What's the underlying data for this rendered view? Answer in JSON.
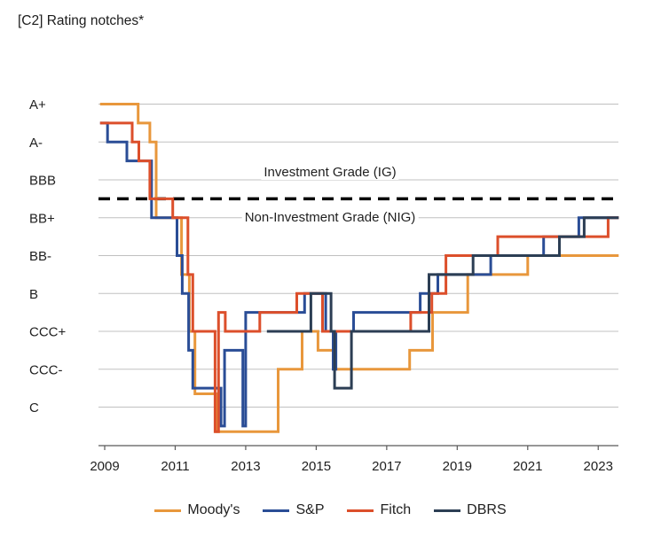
{
  "title": "[C2] Rating notches*",
  "annotations": {
    "ig": "Investment Grade (IG)",
    "nig": "Non-Investment Grade (NIG)"
  },
  "legend": [
    {
      "label": "Moody's",
      "color": "#E8973C"
    },
    {
      "label": "S&P",
      "color": "#2A4D96"
    },
    {
      "label": "Fitch",
      "color": "#DC4F2B"
    },
    {
      "label": "DBRS",
      "color": "#2C3E54"
    }
  ],
  "colors": {
    "grid": "#C0C0C0",
    "axis": "#595959",
    "ig_line": "#000000",
    "text": "#1F1F1F"
  },
  "chart_data": {
    "type": "line",
    "subtype": "step",
    "title": "[C2] Rating notches*",
    "x_axis": {
      "tick_labels": [
        "2009",
        "2011",
        "2013",
        "2015",
        "2017",
        "2019",
        "2021",
        "2023"
      ],
      "tick_values": [
        2009,
        2011,
        2013,
        2015,
        2017,
        2019,
        2021,
        2023
      ],
      "range": [
        2008.87,
        2023.58
      ]
    },
    "y_axis": {
      "tick_labels": [
        "A+",
        "A-",
        "BBB",
        "BB+",
        "BB-",
        "B",
        "CCC+",
        "CCC-",
        "C"
      ],
      "tick_values": [
        16,
        14,
        12,
        10,
        8,
        6,
        4,
        2,
        0
      ]
    },
    "value_scale": {
      "16": "A+",
      "15": "A",
      "14": "A-",
      "13": "BBB+",
      "12": "BBB",
      "11": "BBB-",
      "10": "BB+",
      "9": "BB",
      "8": "BB-",
      "7": "B+",
      "6": "B",
      "5": "B-",
      "4": "CCC+",
      "3": "CCC",
      "2": "CCC-",
      "1": "CC",
      "0": "C",
      "-1": "SD/D"
    },
    "ig_boundary": {
      "value": 11,
      "style": "dashed",
      "color": "#000000"
    },
    "grid": true,
    "legend_position": "bottom",
    "series": [
      {
        "name": "Moody's",
        "color": "#E8973C",
        "points": [
          [
            2008.87,
            16
          ],
          [
            2009.95,
            15
          ],
          [
            2010.28,
            14
          ],
          [
            2010.46,
            10
          ],
          [
            2011.18,
            7
          ],
          [
            2011.4,
            4
          ],
          [
            2011.56,
            0.7
          ],
          [
            2012.17,
            -1.3
          ],
          [
            2013.92,
            2
          ],
          [
            2014.6,
            4
          ],
          [
            2015.05,
            3
          ],
          [
            2015.5,
            2
          ],
          [
            2017.65,
            3
          ],
          [
            2018.3,
            5
          ],
          [
            2019.3,
            7
          ],
          [
            2021.0,
            8
          ]
        ]
      },
      {
        "name": "S&P",
        "color": "#2A4D96",
        "points": [
          [
            2008.87,
            15
          ],
          [
            2009.08,
            14
          ],
          [
            2009.63,
            13
          ],
          [
            2010.33,
            10
          ],
          [
            2011.05,
            8
          ],
          [
            2011.2,
            6
          ],
          [
            2011.38,
            3
          ],
          [
            2011.5,
            1
          ],
          [
            2012.3,
            -1
          ],
          [
            2012.4,
            3
          ],
          [
            2012.92,
            -1
          ],
          [
            2013.0,
            5
          ],
          [
            2014.67,
            6
          ],
          [
            2015.27,
            4
          ],
          [
            2015.48,
            2
          ],
          [
            2015.56,
            4
          ],
          [
            2016.06,
            5
          ],
          [
            2017.95,
            6
          ],
          [
            2018.45,
            7
          ],
          [
            2019.95,
            8
          ],
          [
            2021.45,
            9
          ],
          [
            2022.45,
            10
          ]
        ]
      },
      {
        "name": "Fitch",
        "color": "#DC4F2B",
        "points": [
          [
            2008.87,
            15
          ],
          [
            2009.78,
            14
          ],
          [
            2009.97,
            13
          ],
          [
            2010.28,
            11
          ],
          [
            2010.93,
            10
          ],
          [
            2011.36,
            7
          ],
          [
            2011.5,
            4
          ],
          [
            2012.13,
            -1.3
          ],
          [
            2012.23,
            5
          ],
          [
            2012.42,
            4
          ],
          [
            2013.4,
            5
          ],
          [
            2014.45,
            6
          ],
          [
            2015.18,
            4
          ],
          [
            2017.68,
            5
          ],
          [
            2018.28,
            6
          ],
          [
            2018.68,
            8
          ],
          [
            2020.15,
            9
          ],
          [
            2023.28,
            10
          ]
        ]
      },
      {
        "name": "DBRS",
        "color": "#2C3E54",
        "points": [
          [
            2013.6,
            4
          ],
          [
            2014.85,
            6
          ],
          [
            2015.42,
            4
          ],
          [
            2015.52,
            1
          ],
          [
            2016.0,
            4
          ],
          [
            2018.2,
            7
          ],
          [
            2019.45,
            8
          ],
          [
            2021.9,
            9
          ],
          [
            2022.6,
            10
          ]
        ]
      }
    ]
  }
}
